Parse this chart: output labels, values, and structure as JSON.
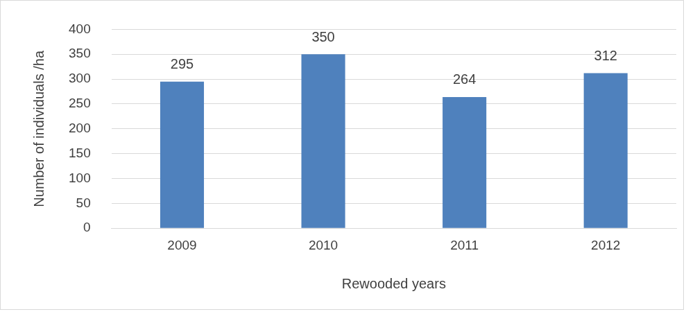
{
  "chart_data": {
    "type": "bar",
    "xlabel": "Rewooded years",
    "ylabel": "Number of individuals /ha",
    "categories": [
      "2009",
      "2010",
      "2011",
      "2012"
    ],
    "values": [
      295,
      350,
      264,
      312
    ],
    "color": "#4f81bd",
    "ylim": [
      0,
      400
    ],
    "yticks": [
      0,
      50,
      100,
      150,
      200,
      250,
      300,
      350,
      400
    ],
    "grid": "y",
    "data_labels": true,
    "legend": false
  }
}
